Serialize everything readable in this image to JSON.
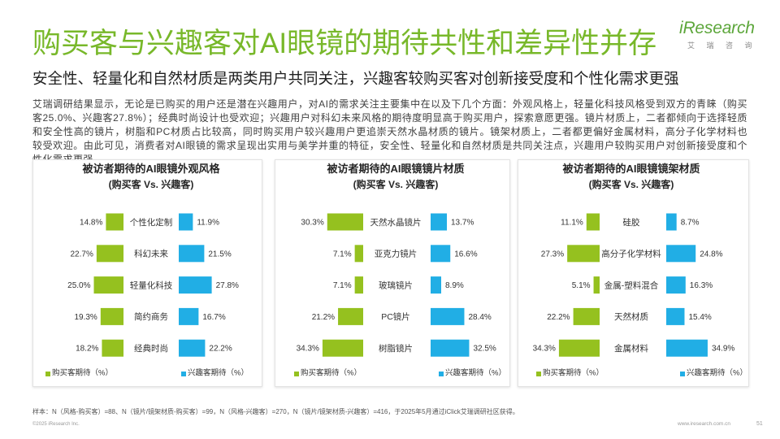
{
  "logo": {
    "brand": "iResearch",
    "brand_cn": "艾 瑞 咨 询"
  },
  "title": "购买客与兴趣客对AI眼镜的期待共性和差异性并存",
  "subtitle": "安全性、轻量化和自然材质是两类用户共同关注，兴趣客较购买客对创新接受度和个性化需求更强",
  "summary": "艾瑞调研结果显示，无论是已购买的用户还是潜在兴趣用户，对AI的需求关注主要集中在以及下几个方面：外观风格上，轻量化科技风格受到双方的青睐（购买客25.0%、兴趣客27.8%）；经典时尚设计也受欢迎；兴趣用户对科幻未来风格的期待度明显高于购买用户，探索意愿更强。镜片材质上，二者都倾向于选择轻质和安全性高的镜片，树脂和PC材质占比较高，同时购买用户较兴趣用户更追崇天然水晶材质的镜片。镜架材质上，二者都更偏好金属材料，高分子化学材料也较受欢迎。由此可见，消费者对AI眼镜的需求呈现出实用与美学并重的特征，安全性、轻量化和自然材质是共同关注点，兴趣用户较购买用户对创新接受度和个性化需求更强。",
  "colors": {
    "title": "#78b82a",
    "logo": "#5ca63a",
    "buy": "#95c11f",
    "interest": "#21aee5"
  },
  "chart_data": [
    {
      "type": "bar",
      "title": "被访者期待的AI眼镜外观风格",
      "subtitle": "(购买客 Vs. 兴趣客)",
      "categories": [
        "个性化定制",
        "科幻未来",
        "轻量化科技",
        "简约商务",
        "经典时尚"
      ],
      "series": [
        {
          "name": "购买客期待（%）",
          "values": [
            14.8,
            22.7,
            25.0,
            19.3,
            18.2
          ]
        },
        {
          "name": "兴趣客期待（%）",
          "values": [
            11.9,
            21.5,
            27.8,
            16.7,
            22.2
          ]
        }
      ],
      "unit": "%",
      "grid": false,
      "legend": "bottom"
    },
    {
      "type": "bar",
      "title": "被访者期待的AI眼镜镜片材质",
      "subtitle": "(购买客 Vs. 兴趣客)",
      "categories": [
        "天然水晶镜片",
        "亚克力镜片",
        "玻璃镜片",
        "PC镜片",
        "树脂镜片"
      ],
      "series": [
        {
          "name": "购买客期待（%）",
          "values": [
            30.3,
            7.1,
            7.1,
            21.2,
            34.3
          ]
        },
        {
          "name": "兴趣客期待（%）",
          "values": [
            13.7,
            16.6,
            8.9,
            28.4,
            32.5
          ]
        }
      ],
      "unit": "%",
      "grid": false,
      "legend": "bottom"
    },
    {
      "type": "bar",
      "title": "被访者期待的AI眼镜镜架材质",
      "subtitle": "(购买客 Vs. 兴趣客)",
      "categories": [
        "硅胶",
        "高分子化学材料",
        "金属-塑料混合",
        "天然材质",
        "金属材料"
      ],
      "series": [
        {
          "name": "购买客期待（%）",
          "values": [
            11.1,
            27.3,
            5.1,
            22.2,
            34.3
          ]
        },
        {
          "name": "兴趣客期待（%）",
          "values": [
            8.7,
            24.8,
            16.3,
            15.4,
            34.9
          ]
        }
      ],
      "unit": "%",
      "grid": false,
      "legend": "bottom"
    }
  ],
  "footer": {
    "sample_note": "样本：N（风格-购买客）=88、N（镜片/镜架材质-购买客）=99，N（风格-兴趣客）=270，N（镜片/镜架材质-兴趣客）=416，于2025年5月通过iClick艾瑞调研社区获得。",
    "copyright": "©2025 iResearch Inc.",
    "website": "www.iresearch.com.cn",
    "page_number": "51"
  }
}
